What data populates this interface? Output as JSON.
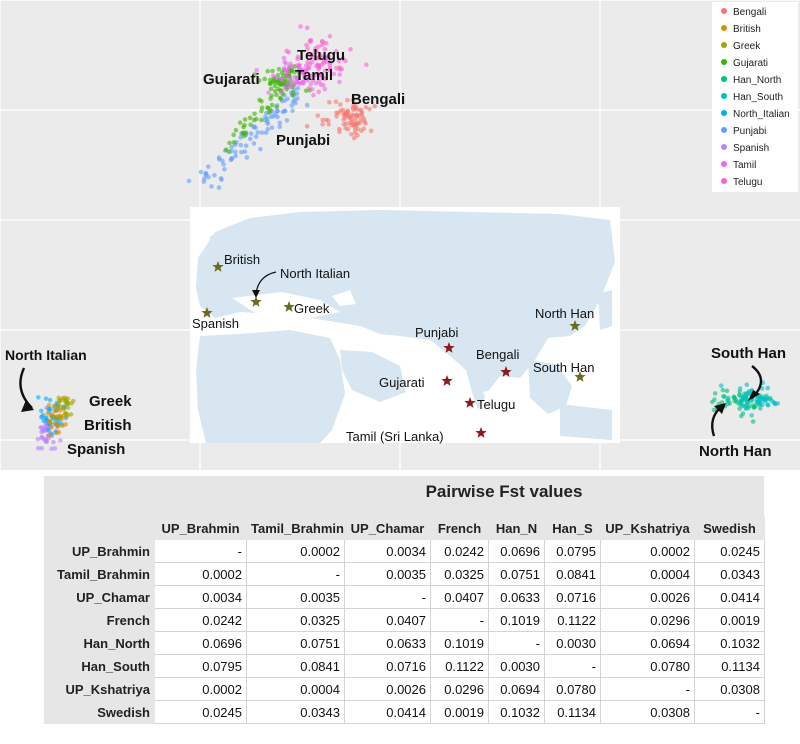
{
  "chart_data": [
    {
      "type": "scatter",
      "legend": {
        "placement": "top-right",
        "entries": [
          {
            "name": "Bengali",
            "color": "#f8766d"
          },
          {
            "name": "British",
            "color": "#d89000"
          },
          {
            "name": "Greek",
            "color": "#a3a500"
          },
          {
            "name": "Gujarati",
            "color": "#39b600"
          },
          {
            "name": "Han_North",
            "color": "#00bf7d"
          },
          {
            "name": "Han_South",
            "color": "#00bfc4"
          },
          {
            "name": "North_Italian",
            "color": "#00b0f6"
          },
          {
            "name": "Punjabi",
            "color": "#619cff"
          },
          {
            "name": "Spanish",
            "color": "#b983ff"
          },
          {
            "name": "Tamil",
            "color": "#e76bf3"
          },
          {
            "name": "Telugu",
            "color": "#fd61d1"
          }
        ]
      },
      "grid": true,
      "annotations": [
        "Telugu",
        "Tamil",
        "Gujarati",
        "Bengali",
        "Punjabi",
        "North Italian",
        "Greek",
        "British",
        "Spanish",
        "South Han",
        "North Han"
      ]
    },
    {
      "type": "table",
      "title": "Pairwise Fst values",
      "columns": [
        "UP_Brahmin",
        "Tamil_Brahmin",
        "UP_Chamar",
        "French",
        "Han_N",
        "Han_S",
        "UP_Kshatriya",
        "Swedish"
      ],
      "rows": [
        {
          "label": "UP_Brahmin",
          "values": [
            "-",
            "0.0002",
            "0.0034",
            "0.0242",
            "0.0696",
            "0.0795",
            "0.0002",
            "0.0245"
          ]
        },
        {
          "label": "Tamil_Brahmin",
          "values": [
            "0.0002",
            "-",
            "0.0035",
            "0.0325",
            "0.0751",
            "0.0841",
            "0.0004",
            "0.0343"
          ]
        },
        {
          "label": "UP_Chamar",
          "values": [
            "0.0034",
            "0.0035",
            "-",
            "0.0407",
            "0.0633",
            "0.0716",
            "0.0026",
            "0.0414"
          ]
        },
        {
          "label": "French",
          "values": [
            "0.0242",
            "0.0325",
            "0.0407",
            "-",
            "0.1019",
            "0.1122",
            "0.0296",
            "0.0019"
          ]
        },
        {
          "label": "Han_North",
          "values": [
            "0.0696",
            "0.0751",
            "0.0633",
            "0.1019",
            "-",
            "0.0030",
            "0.0694",
            "0.1032"
          ]
        },
        {
          "label": "Han_South",
          "values": [
            "0.0795",
            "0.0841",
            "0.0716",
            "0.1122",
            "0.0030",
            "-",
            "0.0780",
            "0.1134"
          ]
        },
        {
          "label": "UP_Kshatriya",
          "values": [
            "0.0002",
            "0.0004",
            "0.0026",
            "0.0296",
            "0.0694",
            "0.0780",
            "-",
            "0.0308"
          ]
        },
        {
          "label": "Swedish",
          "values": [
            "0.0245",
            "0.0343",
            "0.0414",
            "0.0019",
            "0.1032",
            "0.1134",
            "0.0308",
            "-"
          ]
        }
      ]
    }
  ],
  "map": {
    "markers": [
      {
        "label": "British",
        "color": "#6b6b1e"
      },
      {
        "label": "North Italian",
        "color": "#6b6b1e"
      },
      {
        "label": "Spanish",
        "color": "#6b6b1e"
      },
      {
        "label": "Greek",
        "color": "#6b6b1e"
      },
      {
        "label": "Punjabi",
        "color": "#8b1a1a"
      },
      {
        "label": "Bengali",
        "color": "#8b1a1a"
      },
      {
        "label": "Gujarati",
        "color": "#8b1a1a"
      },
      {
        "label": "Telugu",
        "color": "#8b1a1a"
      },
      {
        "label": "Tamil (Sri Lanka)",
        "color": "#8b1a1a"
      },
      {
        "label": "North Han",
        "color": "#6b6b1e"
      },
      {
        "label": "South Han",
        "color": "#6b6b1e"
      }
    ]
  }
}
